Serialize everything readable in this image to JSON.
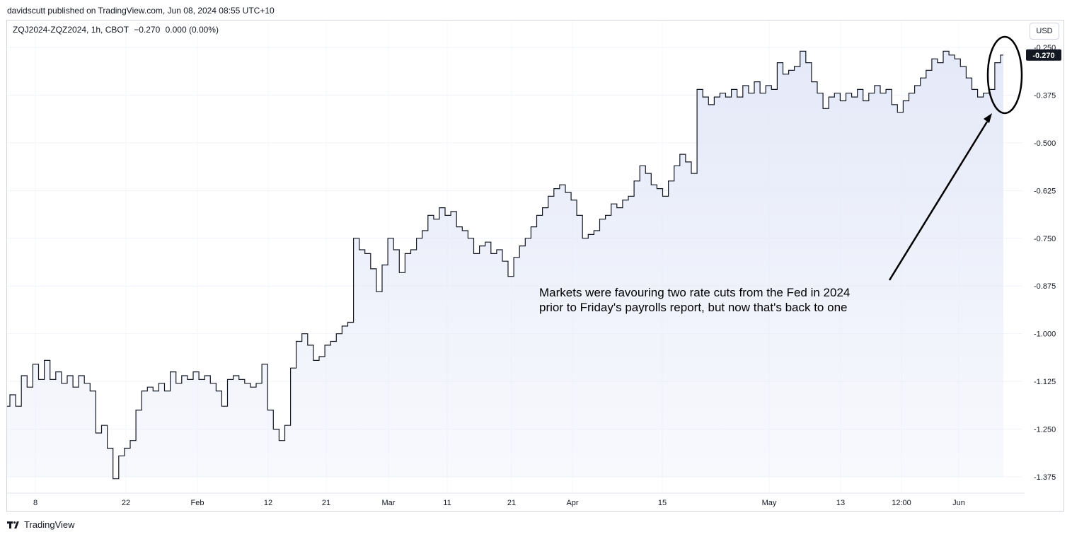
{
  "header": {
    "published_text": "davidscutt published on TradingView.com, Jun 08, 2024 08:55 UTC+10"
  },
  "legend": {
    "symbol": "ZQJ2024-ZQZ2024, 1h, CBOT",
    "last": "−0.270",
    "change": "0.000 (0.00%)"
  },
  "currency_button": "USD",
  "footer": {
    "brand": "TradingView"
  },
  "annotation": {
    "line1": "Markets were favouring two rate cuts from the Fed in 2024",
    "line2": "prior to Friday's payrolls report, but now that's back to one"
  },
  "chart_data": {
    "type": "area",
    "title": "",
    "xlabel": "",
    "ylabel": "",
    "ylim": [
      -1.375,
      -0.25
    ],
    "y_ticks": [
      "-0.250",
      "-0.375",
      "-0.500",
      "-0.625",
      "-0.750",
      "-0.875",
      "-1.000",
      "-1.125",
      "-1.250",
      "-1.375"
    ],
    "y_tick_values": [
      -0.25,
      -0.375,
      -0.5,
      -0.625,
      -0.75,
      -0.875,
      -1.0,
      -1.125,
      -1.25,
      -1.375
    ],
    "x_ticks": [
      "8",
      "22",
      "Feb",
      "12",
      "21",
      "Mar",
      "11",
      "21",
      "Apr",
      "15",
      "May",
      "13",
      "12:00",
      "Jun"
    ],
    "last_value_label": "-0.270",
    "line_color": "#131722",
    "fill_color": "#e3e8f8",
    "last_label_bg": "#131722",
    "series": [
      {
        "values": [
          -1.19,
          -1.16,
          -1.19,
          -1.11,
          -1.14,
          -1.08,
          -1.12,
          -1.07,
          -1.12,
          -1.1,
          -1.13,
          -1.11,
          -1.14,
          -1.11,
          -1.13,
          -1.15,
          -1.26,
          -1.24,
          -1.3,
          -1.38,
          -1.32,
          -1.3,
          -1.28,
          -1.2,
          -1.15,
          -1.14,
          -1.15,
          -1.13,
          -1.15,
          -1.1,
          -1.13,
          -1.11,
          -1.12,
          -1.1,
          -1.12,
          -1.11,
          -1.13,
          -1.15,
          -1.19,
          -1.12,
          -1.11,
          -1.12,
          -1.13,
          -1.14,
          -1.13,
          -1.08,
          -1.2,
          -1.25,
          -1.28,
          -1.24,
          -1.09,
          -1.02,
          -1.0,
          -1.03,
          -1.07,
          -1.06,
          -1.03,
          -1.02,
          -1.0,
          -0.98,
          -0.97,
          -0.75,
          -0.78,
          -0.79,
          -0.83,
          -0.89,
          -0.82,
          -0.75,
          -0.78,
          -0.84,
          -0.79,
          -0.78,
          -0.75,
          -0.73,
          -0.69,
          -0.7,
          -0.67,
          -0.69,
          -0.68,
          -0.72,
          -0.73,
          -0.75,
          -0.79,
          -0.77,
          -0.76,
          -0.79,
          -0.78,
          -0.81,
          -0.85,
          -0.8,
          -0.77,
          -0.75,
          -0.72,
          -0.69,
          -0.67,
          -0.64,
          -0.62,
          -0.61,
          -0.63,
          -0.65,
          -0.69,
          -0.75,
          -0.74,
          -0.73,
          -0.7,
          -0.69,
          -0.66,
          -0.67,
          -0.65,
          -0.64,
          -0.6,
          -0.56,
          -0.58,
          -0.61,
          -0.62,
          -0.64,
          -0.6,
          -0.56,
          -0.53,
          -0.55,
          -0.58,
          -0.36,
          -0.38,
          -0.4,
          -0.38,
          -0.37,
          -0.38,
          -0.36,
          -0.38,
          -0.35,
          -0.37,
          -0.34,
          -0.37,
          -0.35,
          -0.36,
          -0.29,
          -0.32,
          -0.31,
          -0.3,
          -0.26,
          -0.29,
          -0.34,
          -0.37,
          -0.41,
          -0.38,
          -0.37,
          -0.39,
          -0.37,
          -0.38,
          -0.36,
          -0.39,
          -0.37,
          -0.35,
          -0.37,
          -0.36,
          -0.4,
          -0.42,
          -0.39,
          -0.37,
          -0.35,
          -0.33,
          -0.31,
          -0.28,
          -0.29,
          -0.26,
          -0.27,
          -0.28,
          -0.3,
          -0.33,
          -0.36,
          -0.38,
          -0.37,
          -0.36,
          -0.29,
          -0.27
        ]
      }
    ]
  }
}
